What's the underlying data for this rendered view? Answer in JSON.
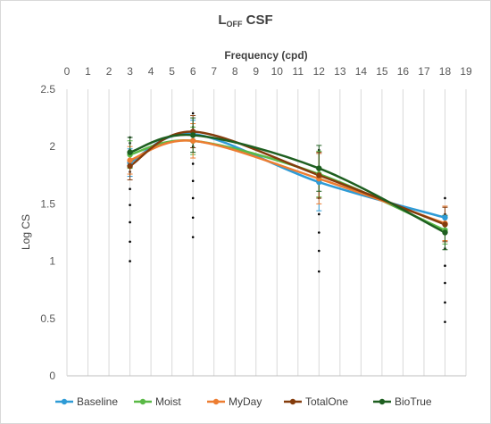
{
  "chart_data": {
    "type": "line",
    "title_main": "L",
    "title_sub": "OFF",
    "title_rest": " CSF",
    "xlabel": "Frequency (cpd)",
    "ylabel": "Log CS",
    "xlim": [
      0,
      19
    ],
    "ylim": [
      0,
      2.5
    ],
    "x_ticks": [
      0,
      1,
      2,
      3,
      4,
      5,
      6,
      7,
      8,
      9,
      10,
      11,
      12,
      13,
      14,
      15,
      16,
      17,
      18,
      19
    ],
    "y_ticks": [
      0,
      0.5,
      1,
      1.5,
      2,
      2.5
    ],
    "y_tick_labels": [
      "0",
      "0.5",
      "1",
      "1.5",
      "2",
      "2.5"
    ],
    "x_axis_position": "top",
    "grid": "vertical",
    "legend_position": "bottom",
    "x": [
      3,
      6,
      12,
      18
    ],
    "series": [
      {
        "name": "Baseline",
        "color": "#2e9bd6",
        "values": [
          1.86,
          2.11,
          1.69,
          1.38
        ],
        "errors": [
          0.12,
          0.12,
          0.25,
          0.1
        ]
      },
      {
        "name": "Moist",
        "color": "#5ab946",
        "values": [
          1.93,
          2.05,
          1.76,
          1.27
        ],
        "errors": [
          0.12,
          0.12,
          0.2,
          0.12
        ]
      },
      {
        "name": "MyDay",
        "color": "#ed7d31",
        "values": [
          1.88,
          2.05,
          1.72,
          1.33
        ],
        "errors": [
          0.12,
          0.15,
          0.22,
          0.15
        ]
      },
      {
        "name": "TotalOne",
        "color": "#843c0c",
        "values": [
          1.83,
          2.13,
          1.75,
          1.32
        ],
        "errors": [
          0.12,
          0.14,
          0.2,
          0.15
        ]
      },
      {
        "name": "BioTrue",
        "color": "#1e5f20",
        "values": [
          1.95,
          2.1,
          1.81,
          1.25
        ],
        "errors": [
          0.13,
          0.15,
          0.2,
          0.15
        ]
      }
    ],
    "individual_points": [
      {
        "x": 3,
        "values": [
          2.08,
          2.03,
          1.97,
          1.78,
          1.63,
          1.49,
          1.34,
          1.17,
          1.0
        ]
      },
      {
        "x": 6,
        "values": [
          2.29,
          2.17,
          2.0,
          1.85,
          1.7,
          1.55,
          1.38,
          1.21
        ]
      },
      {
        "x": 12,
        "values": [
          1.97,
          1.75,
          1.55,
          1.41,
          1.25,
          1.09,
          0.91
        ]
      },
      {
        "x": 18,
        "values": [
          1.55,
          1.41,
          1.26,
          1.11,
          0.96,
          0.81,
          0.64,
          0.47
        ]
      }
    ]
  }
}
